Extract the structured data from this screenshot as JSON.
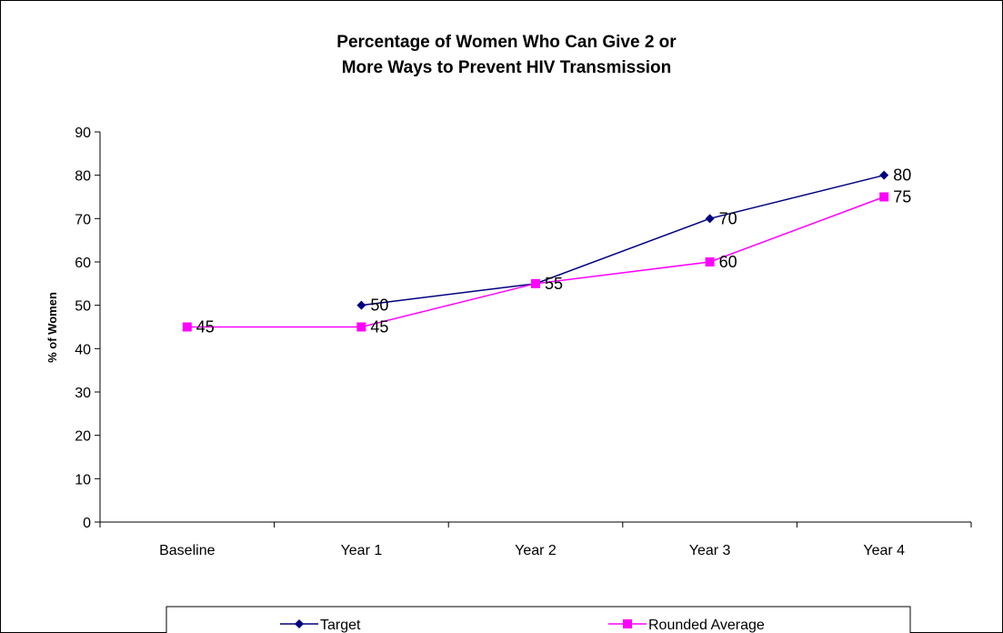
{
  "chart_data": {
    "type": "line",
    "title_lines": [
      "Percentage of Women Who Can Give 2 or",
      "More Ways to Prevent HIV Transmission"
    ],
    "xlabel": "",
    "ylabel": "% of Women",
    "categories": [
      "Baseline",
      "Year 1",
      "Year 2",
      "Year 3",
      "Year 4"
    ],
    "ylim": [
      0,
      90
    ],
    "yticks": [
      "0",
      "10",
      "20",
      "30",
      "40",
      "50",
      "60",
      "70",
      "80",
      "90"
    ],
    "grid": false,
    "legend_position": "bottom",
    "series": [
      {
        "name": "Target",
        "values": [
          null,
          50,
          55,
          70,
          80
        ],
        "labels": [
          "",
          "50",
          "",
          "70",
          "80"
        ],
        "color": "#000080",
        "marker": "diamond"
      },
      {
        "name": "Rounded Average",
        "values": [
          45,
          45,
          55,
          60,
          75
        ],
        "labels": [
          "45",
          "45",
          "55",
          "60",
          "75"
        ],
        "color": "#ff00ff",
        "marker": "square"
      }
    ]
  }
}
